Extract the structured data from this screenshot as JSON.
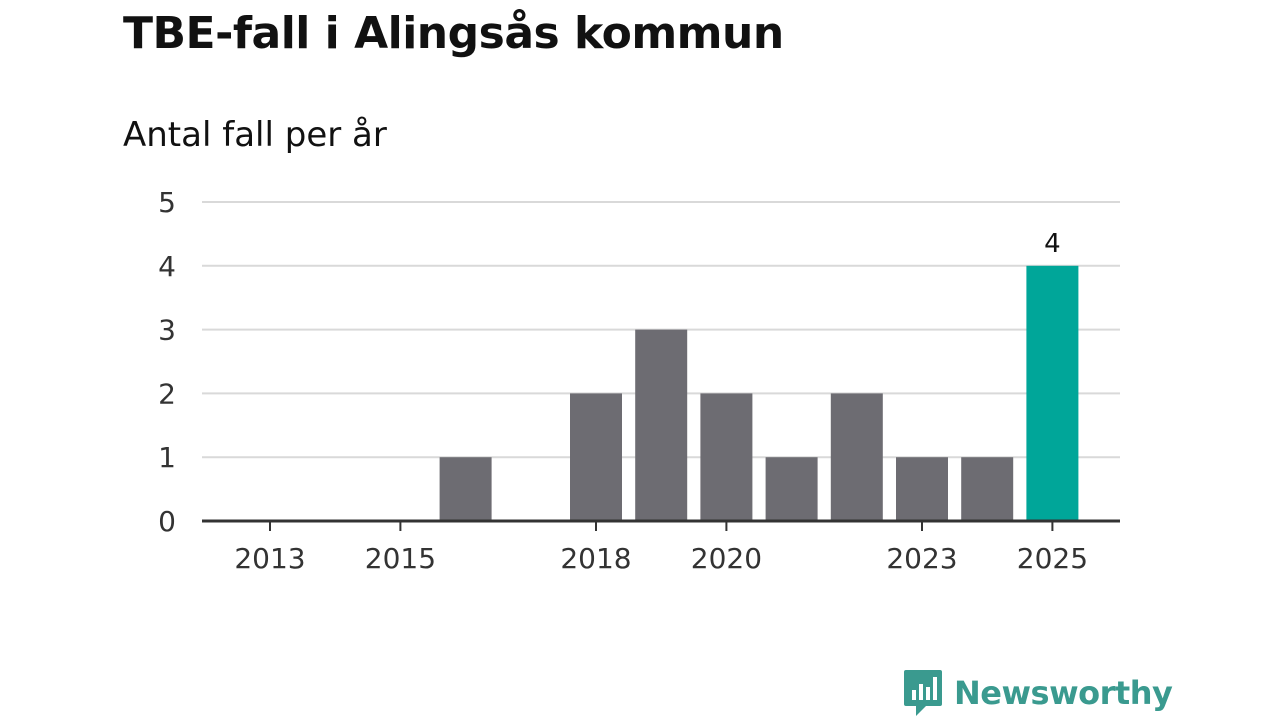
{
  "title": "TBE-fall i Alingsås kommun",
  "subtitle": "Antal fall per år",
  "brand": "Newsworthy",
  "colors": {
    "bar": "#6d6c72",
    "highlight": "#00a699",
    "grid": "#d9d9d9",
    "axis": "#333333",
    "brand": "#3a9a8f"
  },
  "chart_data": {
    "type": "bar",
    "title": "TBE-fall i Alingsås kommun",
    "subtitle": "Antal fall per år",
    "xlabel": "",
    "ylabel": "",
    "categories": [
      "2013",
      "2014",
      "2015",
      "2016",
      "2017",
      "2018",
      "2019",
      "2020",
      "2021",
      "2022",
      "2023",
      "2024",
      "2025"
    ],
    "values": [
      0,
      0,
      0,
      1,
      0,
      2,
      3,
      2,
      1,
      2,
      1,
      1,
      4
    ],
    "highlight": "2025",
    "x_tick_labels": [
      "2013",
      "2015",
      "2018",
      "2020",
      "2023",
      "2025"
    ],
    "y_ticks": [
      0,
      1,
      2,
      3,
      4,
      5
    ],
    "ylim": [
      0,
      5
    ],
    "data_labels": [
      {
        "category": "2025",
        "text": "4"
      }
    ],
    "grid": true
  }
}
